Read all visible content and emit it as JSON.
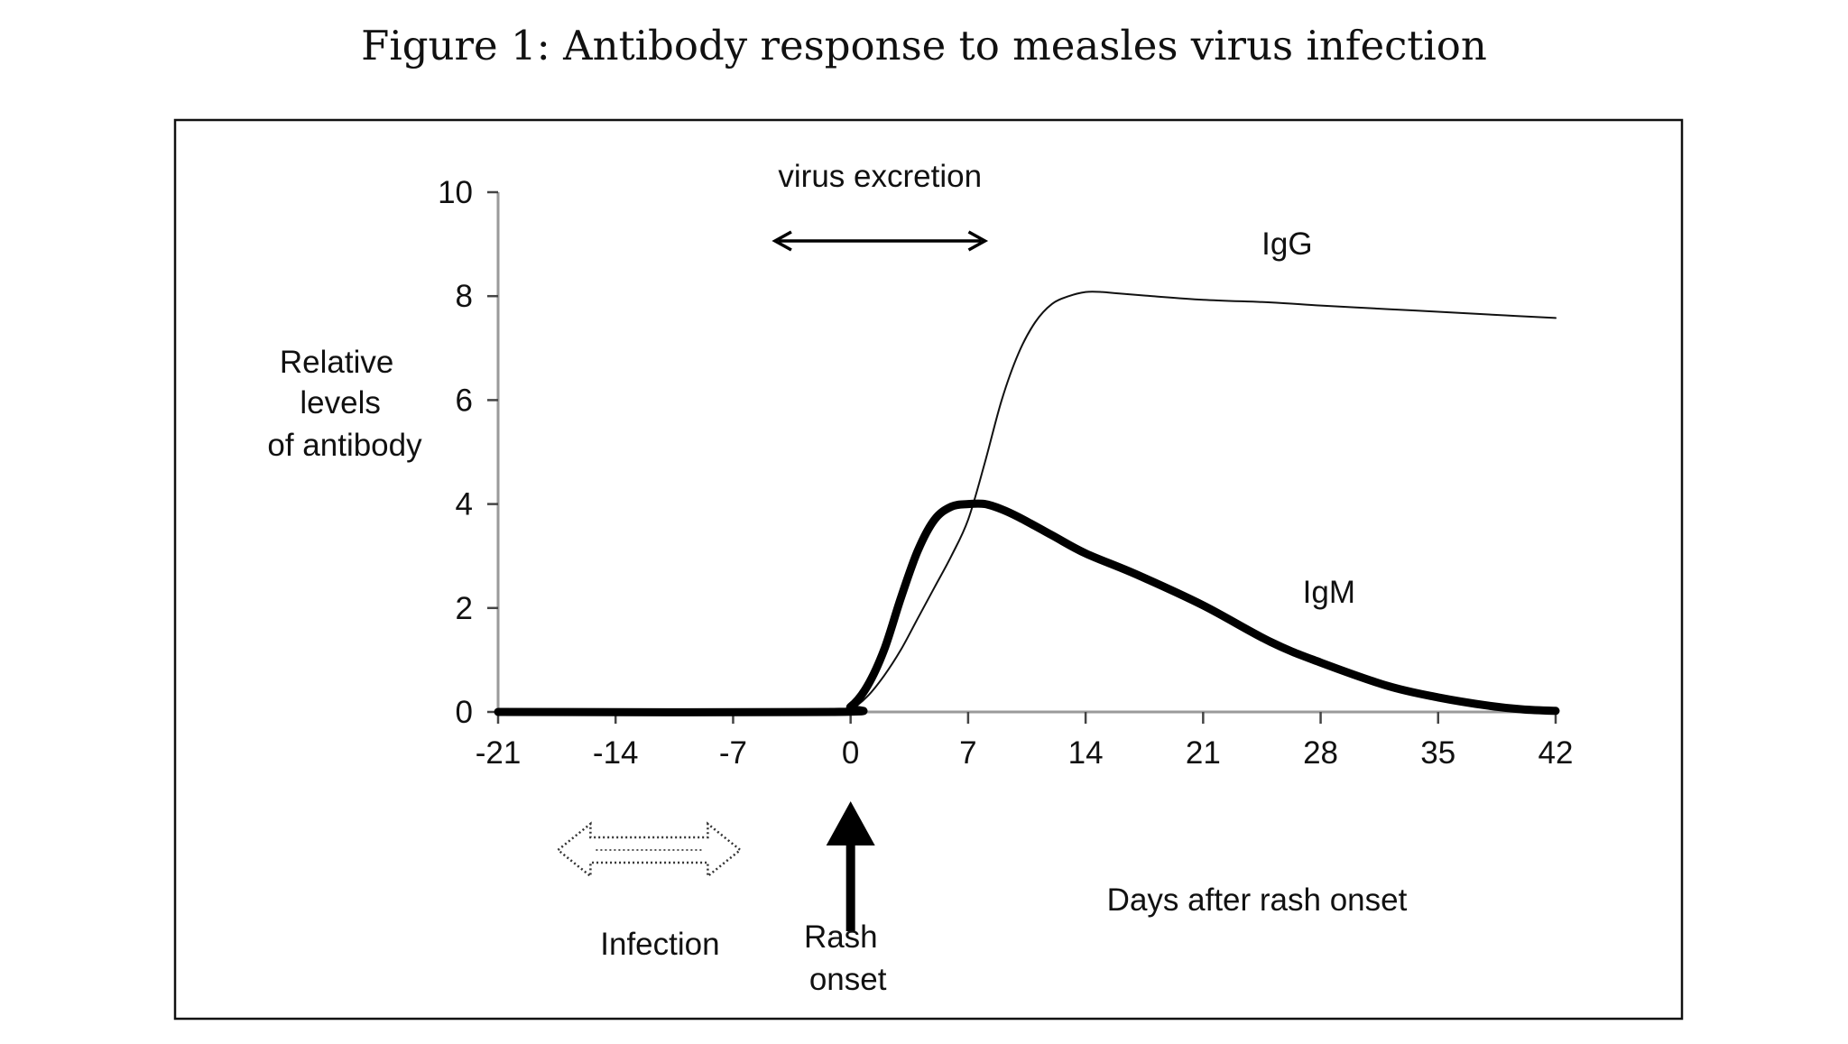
{
  "figure": {
    "title": "Figure 1:   Antibody response to measles virus infection"
  },
  "chart_data": {
    "type": "line",
    "title": "Antibody response to measles virus infection",
    "xlabel": "Days after rash onset",
    "ylabel_lines": [
      "Relative",
      "levels",
      "of antibody"
    ],
    "xlim": [
      -21,
      42
    ],
    "ylim": [
      0,
      10
    ],
    "x_ticks": [
      -21,
      -14,
      -7,
      0,
      7,
      14,
      21,
      28,
      35,
      42
    ],
    "x_tick_labels": [
      "-21",
      "-14",
      "-7",
      "0",
      "7",
      "14",
      "21",
      "28",
      "35",
      "42"
    ],
    "y_ticks": [
      0,
      2,
      4,
      6,
      8,
      10
    ],
    "y_tick_labels": [
      "0",
      "2",
      "4",
      "6",
      "8",
      "10"
    ],
    "series": [
      {
        "name": "IgG",
        "label": "IgG",
        "style": "thin",
        "color": "#111111",
        "x": [
          -21,
          -1,
          0,
          1,
          2,
          3,
          4,
          5,
          6,
          7,
          8,
          9,
          10,
          11,
          12,
          13,
          14,
          15,
          16,
          18,
          21,
          25,
          28,
          32,
          35,
          39,
          42
        ],
        "y": [
          0,
          0,
          0.05,
          0.3,
          0.7,
          1.2,
          1.8,
          2.4,
          3.0,
          3.7,
          4.8,
          6.0,
          6.9,
          7.5,
          7.85,
          8.0,
          8.08,
          8.08,
          8.05,
          8.0,
          7.93,
          7.88,
          7.82,
          7.75,
          7.7,
          7.63,
          7.58
        ]
      },
      {
        "name": "IgM",
        "label": "IgM",
        "style": "thick",
        "color": "#000000",
        "x": [
          -21,
          -1,
          0,
          1,
          2,
          3,
          4,
          5,
          6,
          7,
          8,
          9,
          10,
          12,
          14,
          17,
          21,
          25,
          28,
          32,
          35,
          38,
          40,
          42
        ],
        "y": [
          0,
          0,
          0.1,
          0.5,
          1.2,
          2.2,
          3.1,
          3.7,
          3.95,
          4.0,
          4.0,
          3.9,
          3.75,
          3.4,
          3.05,
          2.65,
          2.05,
          1.35,
          0.95,
          0.5,
          0.28,
          0.12,
          0.05,
          0.02
        ]
      }
    ],
    "annotations": {
      "virus_excretion": {
        "label": "virus excretion",
        "x_range": [
          -4.5,
          8
        ]
      },
      "infection": {
        "label": "Infection",
        "x_range": [
          -17,
          -7
        ]
      },
      "rash_onset": {
        "label_line1": "Rash",
        "label_line2": "onset",
        "x": 0
      }
    },
    "grid": false,
    "legend": "inline labels"
  }
}
